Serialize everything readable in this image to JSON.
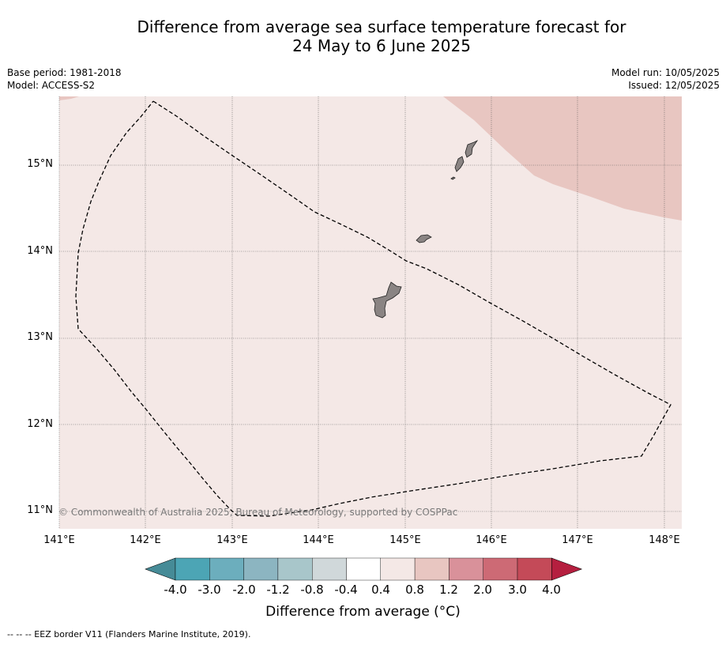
{
  "title_line1": "Difference from average sea surface temperature forecast for",
  "title_line2": "24 May to 6 June 2025",
  "base_period": "Base period: 1981-2018",
  "model": "Model: ACCESS-S2",
  "model_run": "Model run: 10/05/2025",
  "issued": "Issued: 12/05/2025",
  "map": {
    "x_ticks": [
      "141°E",
      "142°E",
      "143°E",
      "144°E",
      "145°E",
      "146°E",
      "147°E",
      "148°E"
    ],
    "y_ticks": [
      "15°N",
      "14°N",
      "13°N",
      "12°N",
      "11°N"
    ],
    "copyright": "© Commonwealth of Australia 2025, Bureau of Meteorology, supported by COSPPac",
    "colors": {
      "background_anomaly": "#f4e8e6",
      "warm_anomaly": "#e8c6c1",
      "land": "#8a8483",
      "eez_border": "#000000",
      "grid": "#555555"
    }
  },
  "colorbar": {
    "labels": [
      "-4.0",
      "-3.0",
      "-2.0",
      "-1.2",
      "-0.8",
      "-0.4",
      "0.4",
      "0.8",
      "1.2",
      "2.0",
      "3.0",
      "4.0"
    ],
    "colors": [
      "#468b97",
      "#4ca5b5",
      "#6caebd",
      "#8cb5c1",
      "#a8c6ca",
      "#d0d8da",
      "#ffffff",
      "#f4e8e6",
      "#e8c6c1",
      "#d9919a",
      "#cd6a75",
      "#c44a58",
      "#b51f3f"
    ],
    "title": "Difference from average (°C)"
  },
  "footnote": "--  --  -- EEZ border V11 (Flanders Marine Institute, 2019)."
}
